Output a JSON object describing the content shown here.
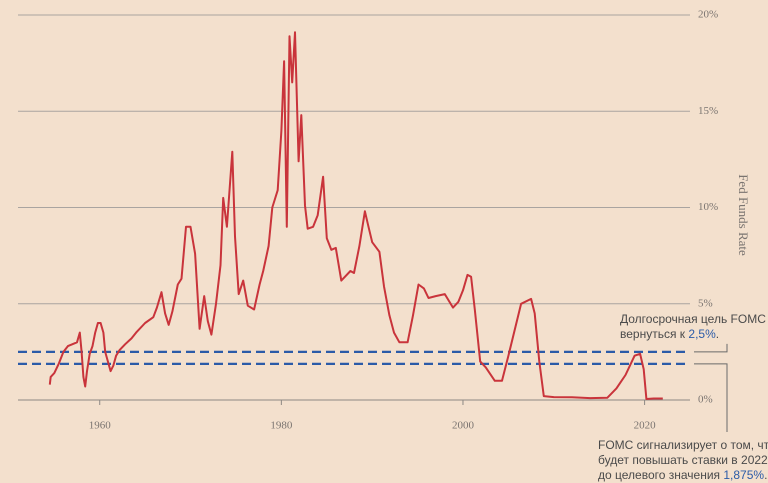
{
  "chart_data": {
    "type": "line",
    "y_label": "Fed Funds Rate",
    "x": [
      1954.5,
      1954.6,
      1955,
      1955.5,
      1956,
      1956.5,
      1957,
      1957.5,
      1957.8,
      1958,
      1958.2,
      1958.4,
      1958.6,
      1958.9,
      1959.2,
      1959.5,
      1959.8,
      1960.1,
      1960.4,
      1960.6,
      1960.9,
      1961.2,
      1961.5,
      1961.8,
      1962.2,
      1962.8,
      1963.5,
      1964,
      1965,
      1965.9,
      1966.3,
      1966.8,
      1967.2,
      1967.6,
      1968,
      1968.6,
      1969,
      1969.5,
      1970,
      1970.5,
      1971,
      1971.5,
      1971.9,
      1972.3,
      1972.8,
      1973.3,
      1973.6,
      1974,
      1974.6,
      1974.9,
      1975.3,
      1975.8,
      1976.3,
      1977,
      1977.6,
      1978,
      1978.6,
      1979,
      1979.6,
      1980,
      1980.3,
      1980.6,
      1980.9,
      1981.2,
      1981.5,
      1981.9,
      1982.2,
      1982.6,
      1982.9,
      1983.5,
      1984,
      1984.6,
      1985,
      1985.5,
      1986,
      1986.6,
      1987,
      1987.6,
      1988,
      1988.6,
      1989.2,
      1989.6,
      1990,
      1990.8,
      1991.3,
      1991.9,
      1992.4,
      1993,
      1993.9,
      1994.5,
      1995.1,
      1995.7,
      1996.2,
      1997,
      1998,
      1998.9,
      1999.5,
      2000,
      2000.5,
      2000.9,
      2001.3,
      2001.9,
      2002.5,
      2003.5,
      2004.3,
      2005,
      2006.4,
      2007.5,
      2007.9,
      2008.4,
      2008.9,
      2010,
      2012,
      2014,
      2015.9,
      2016.9,
      2017.9,
      2018.9,
      2019.5,
      2019.9,
      2020.2,
      2021,
      2022
    ],
    "values": [
      0.8,
      1.2,
      1.4,
      1.9,
      2.5,
      2.8,
      2.9,
      3.0,
      3.5,
      2.5,
      1.2,
      0.7,
      1.5,
      2.4,
      2.8,
      3.5,
      4.0,
      4.0,
      3.5,
      2.5,
      2.0,
      1.5,
      1.8,
      2.3,
      2.6,
      2.9,
      3.2,
      3.5,
      4.0,
      4.3,
      4.8,
      5.6,
      4.5,
      3.9,
      4.6,
      6.0,
      6.3,
      9.0,
      9.0,
      7.6,
      3.7,
      5.4,
      4.1,
      3.4,
      5.0,
      7.0,
      10.5,
      9.0,
      12.9,
      8.5,
      5.5,
      6.2,
      4.9,
      4.7,
      6.0,
      6.7,
      8.0,
      10.0,
      10.9,
      14.0,
      17.6,
      9.0,
      18.9,
      16.5,
      19.1,
      12.4,
      14.8,
      10.1,
      8.9,
      9.0,
      9.6,
      11.6,
      8.4,
      7.8,
      7.9,
      6.2,
      6.4,
      6.7,
      6.6,
      8.0,
      9.8,
      9.0,
      8.2,
      7.7,
      5.9,
      4.4,
      3.5,
      3.0,
      3.0,
      4.4,
      6.0,
      5.8,
      5.3,
      5.4,
      5.5,
      4.8,
      5.1,
      5.7,
      6.5,
      6.4,
      4.7,
      2.0,
      1.7,
      1.0,
      1.0,
      2.3,
      5.0,
      5.25,
      4.5,
      2.0,
      0.2,
      0.15,
      0.14,
      0.1,
      0.12,
      0.6,
      1.3,
      2.3,
      2.4,
      1.6,
      0.05,
      0.08,
      0.08
    ],
    "color": "#c9343b",
    "xlim": [
      1951,
      2025
    ],
    "ylim": [
      0,
      20
    ],
    "xticks": [
      1960,
      1980,
      2000,
      2020
    ],
    "yticks": [
      {
        "value": 0,
        "label": "0%"
      },
      {
        "value": 5,
        "label": "5%"
      },
      {
        "value": 10,
        "label": "10%"
      },
      {
        "value": 15,
        "label": "15%"
      },
      {
        "value": 20,
        "label": "20%"
      }
    ],
    "grid": true,
    "reference_lines": [
      {
        "value": 2.5,
        "color": "#2b5ba8"
      },
      {
        "value": 1.875,
        "color": "#2b5ba8"
      }
    ],
    "annotations": [
      {
        "lines": [
          "Долгосрочная цель FOMC",
          "вернуться к "
        ],
        "highlight": "2,5%",
        "suffix": "."
      },
      {
        "lines": [
          "FOMC сигнализирует о том, что",
          "будет повышать ставки в 2022",
          "до целевого значения "
        ],
        "highlight": "1,875%",
        "suffix": "."
      }
    ]
  }
}
